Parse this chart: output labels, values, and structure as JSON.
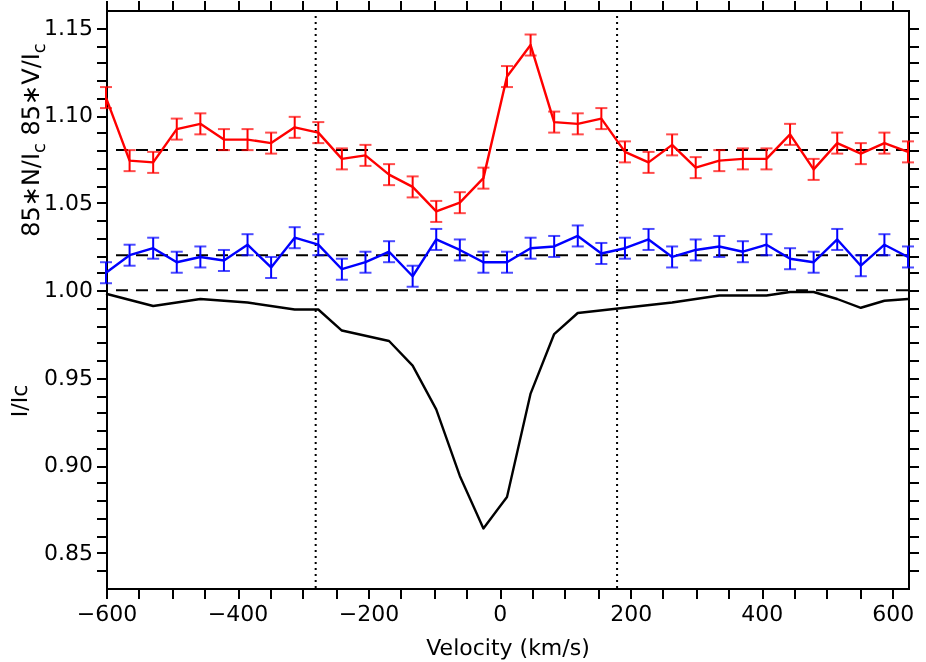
{
  "chart_data": {
    "type": "line",
    "xlabel": "Velocity (km/s)",
    "ylabel": "I/Ic",
    "annotations": [
      "85∗N/I$_{c}$  85∗V/I$_{c}$"
    ],
    "xlim": [
      -600,
      624
    ],
    "ylim": [
      0.83,
      1.16
    ],
    "xticks": [
      -600,
      {
        "value": -550,
        "label": null
      },
      {
        "value": -500,
        "label": null
      },
      {
        "value": -450,
        "label": null
      },
      -400,
      {
        "value": -350,
        "label": null
      },
      {
        "value": -300,
        "label": null
      },
      {
        "value": -250,
        "label": null
      },
      -200,
      {
        "value": -150,
        "label": null
      },
      {
        "value": -100,
        "label": null
      },
      {
        "value": -50,
        "label": null
      },
      0,
      {
        "value": 50,
        "label": null
      },
      {
        "value": 100,
        "label": null
      },
      {
        "value": 150,
        "label": null
      },
      200,
      {
        "value": 250,
        "label": null
      },
      {
        "value": 300,
        "label": null
      },
      {
        "value": 350,
        "label": null
      },
      400,
      {
        "value": 450,
        "label": null
      },
      {
        "value": 500,
        "label": null
      },
      {
        "value": 550,
        "label": null
      },
      600
    ],
    "yticks": [
      {
        "value": 0.84,
        "label": null
      },
      0.85,
      {
        "value": 0.86,
        "label": null
      },
      {
        "value": 0.87,
        "label": null
      },
      {
        "value": 0.88,
        "label": null
      },
      {
        "value": 0.89,
        "label": null
      },
      {
        "value": 0.9,
        "label": "0.90"
      },
      {
        "value": 0.91,
        "label": null
      },
      {
        "value": 0.92,
        "label": null
      },
      {
        "value": 0.93,
        "label": null
      },
      {
        "value": 0.94,
        "label": null
      },
      0.95,
      {
        "value": 0.96,
        "label": null
      },
      {
        "value": 0.97,
        "label": null
      },
      {
        "value": 0.98,
        "label": null
      },
      {
        "value": 0.99,
        "label": null
      },
      {
        "value": 1,
        "label": "1.00"
      },
      {
        "value": 1.01,
        "label": null
      },
      {
        "value": 1.02,
        "label": null
      },
      {
        "value": 1.03,
        "label": null
      },
      {
        "value": 1.04,
        "label": null
      },
      1.05,
      {
        "value": 1.06,
        "label": null
      },
      {
        "value": 1.07,
        "label": null
      },
      {
        "value": 1.08,
        "label": null
      },
      {
        "value": 1.09,
        "label": null
      },
      {
        "value": 1.1,
        "label": "1.10"
      },
      {
        "value": 1.11,
        "label": null
      },
      {
        "value": 1.12,
        "label": null
      },
      {
        "value": 1.13,
        "label": null
      },
      {
        "value": 1.14,
        "label": null
      },
      1.15
    ],
    "grid": false,
    "marker": "none",
    "line_style": "solid",
    "x": [
      -600,
      -564,
      -528,
      -492,
      -456,
      -420,
      -384,
      -348,
      -312,
      -276,
      -240,
      -204,
      -168,
      -132,
      -96,
      -60,
      -24,
      12,
      48,
      84,
      120,
      156,
      192,
      228,
      264,
      300,
      336,
      372,
      408,
      444,
      480,
      516,
      552,
      588,
      624
    ],
    "series": [
      {
        "color": "#ff0000",
        "values": [
          1.11,
          1.074,
          1.073,
          1.092,
          1.095,
          1.086,
          1.086,
          1.084,
          1.093,
          1.09,
          1.075,
          1.077,
          1.066,
          1.059,
          1.045,
          1.05,
          1.064,
          1.122,
          1.14,
          1.096,
          1.095,
          1.098,
          1.079,
          1.073,
          1.083,
          1.07,
          1.074,
          1.075,
          1.075,
          1.089,
          1.069,
          1.084,
          1.078,
          1.084,
          1.079
        ],
        "errors": [
          0.006,
          0.006,
          0.006,
          0.006,
          0.006,
          0.006,
          0.006,
          0.006,
          0.006,
          0.006,
          0.006,
          0.006,
          0.006,
          0.006,
          0.006,
          0.006,
          0.006,
          0.006,
          0.006,
          0.006,
          0.006,
          0.006,
          0.006,
          0.006,
          0.006,
          0.006,
          0.006,
          0.006,
          0.006,
          0.006,
          0.006,
          0.006,
          0.006,
          0.006,
          0.006
        ]
      },
      {
        "color": "#0000ff",
        "values": [
          1.01,
          1.02,
          1.024,
          1.016,
          1.019,
          1.017,
          1.026,
          1.013,
          1.03,
          1.026,
          1.012,
          1.016,
          1.022,
          1.008,
          1.029,
          1.023,
          1.016,
          1.016,
          1.024,
          1.025,
          1.031,
          1.021,
          1.024,
          1.029,
          1.019,
          1.023,
          1.025,
          1.022,
          1.026,
          1.018,
          1.016,
          1.029,
          1.014,
          1.026,
          1.019
        ],
        "errors": [
          0.006,
          0.006,
          0.006,
          0.006,
          0.006,
          0.006,
          0.006,
          0.006,
          0.006,
          0.006,
          0.006,
          0.006,
          0.006,
          0.006,
          0.006,
          0.006,
          0.006,
          0.006,
          0.006,
          0.006,
          0.006,
          0.006,
          0.006,
          0.006,
          0.006,
          0.006,
          0.006,
          0.006,
          0.006,
          0.006,
          0.006,
          0.006,
          0.006,
          0.006,
          0.006
        ]
      },
      {
        "color": "#000000",
        "x": [
          -600,
          -528,
          -456,
          -384,
          -312,
          -276,
          -240,
          -168,
          -132,
          -96,
          -60,
          -24,
          12,
          48,
          84,
          120,
          192,
          264,
          336,
          408,
          444,
          480,
          516,
          552,
          588,
          624
        ],
        "values": [
          0.998,
          0.991,
          0.995,
          0.993,
          0.989,
          0.989,
          0.977,
          0.971,
          0.957,
          0.932,
          0.894,
          0.864,
          0.882,
          0.941,
          0.975,
          0.987,
          0.99,
          0.993,
          0.997,
          0.997,
          0.999,
          0.999,
          0.995,
          0.99,
          0.994,
          0.995
        ]
      }
    ],
    "ref_lines": [
      {
        "axis": "y",
        "value": 1.08,
        "color": "#000000",
        "line_style": "dashed"
      },
      {
        "axis": "y",
        "value": 1.02,
        "color": "#000000",
        "line_style": "dashed"
      },
      {
        "axis": "y",
        "value": 1.0,
        "color": "#000000",
        "line_style": "dashed"
      },
      {
        "axis": "x",
        "value": -280,
        "color": "#000000",
        "line_style": "dotted"
      },
      {
        "axis": "x",
        "value": 180,
        "color": "#000000",
        "line_style": "dotted"
      }
    ]
  }
}
